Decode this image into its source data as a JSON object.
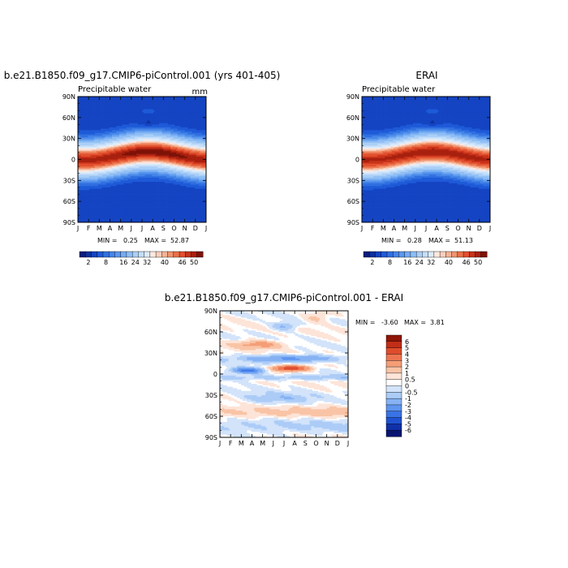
{
  "colors": {
    "seq": [
      "#0a1d7a",
      "#0b2f9c",
      "#1444c2",
      "#1e5ad8",
      "#2f6fe0",
      "#4585e8",
      "#5b98ee",
      "#74abf2",
      "#8fbef5",
      "#aacff7",
      "#c5dff9",
      "#dcebfb",
      "#fde8df",
      "#f9d0bd",
      "#f5b396",
      "#f0936e",
      "#ea7048",
      "#e24f2e",
      "#c93319",
      "#a8200f",
      "#7e1208"
    ],
    "div": [
      "#0a1570",
      "#1030a8",
      "#1f52d1",
      "#3a73e6",
      "#5e95ef",
      "#86b2f4",
      "#acccf7",
      "#d2e3fa",
      "#ffffff",
      "#fde4d8",
      "#f9c4a6",
      "#f49e77",
      "#ec7550",
      "#df4c2c",
      "#c22e18",
      "#8e1608"
    ]
  },
  "chart_data": [
    {
      "type": "heatmap",
      "id": "model",
      "title": "b.e21.B1850.f09_g17.CMIP6-piControl.001 (yrs 401-405)",
      "left_label": "Precipitable water",
      "units": "mm",
      "x_ticks": [
        "J",
        "F",
        "M",
        "A",
        "M",
        "J",
        "J",
        "A",
        "S",
        "O",
        "N",
        "D",
        "J"
      ],
      "y_ticks": [
        "90N",
        "60N",
        "30N",
        "0",
        "30S",
        "60S",
        "90S"
      ],
      "y_range": [
        -90,
        90
      ],
      "min_label": "MIN =",
      "min": "0.25",
      "max_label": "MAX =",
      "max": "52.87",
      "colorbar_labels": [
        "2",
        "8",
        "16",
        "24",
        "32",
        "40",
        "46",
        "50"
      ]
    },
    {
      "type": "heatmap",
      "id": "obs",
      "title": "ERAI",
      "left_label": "Precipitable water",
      "x_ticks": [
        "J",
        "F",
        "M",
        "A",
        "M",
        "J",
        "J",
        "A",
        "S",
        "O",
        "N",
        "D",
        "J"
      ],
      "y_ticks": [
        "90N",
        "60N",
        "30N",
        "0",
        "30S",
        "60S",
        "90S"
      ],
      "y_range": [
        -90,
        90
      ],
      "min_label": "MIN =",
      "min": "0.28",
      "max_label": "MAX =",
      "max": "51.13",
      "colorbar_labels": [
        "2",
        "8",
        "16",
        "24",
        "32",
        "40",
        "46",
        "50"
      ]
    },
    {
      "type": "heatmap",
      "id": "diff",
      "title": "b.e21.B1850.f09_g17.CMIP6-piControl.001 - ERAI",
      "x_ticks": [
        "J",
        "F",
        "M",
        "A",
        "M",
        "J",
        "J",
        "A",
        "S",
        "O",
        "N",
        "D",
        "J"
      ],
      "y_ticks": [
        "90N",
        "60N",
        "30N",
        "0",
        "30S",
        "60S",
        "90S"
      ],
      "y_range": [
        -90,
        90
      ],
      "min_label": "MIN =",
      "min": "-3.60",
      "max_label": "MAX =",
      "max": "3.81",
      "colorbar_labels": [
        "6",
        "5",
        "4",
        "3",
        "2",
        "1",
        "0.5",
        "0",
        "-0.5",
        "-1",
        "-2",
        "-3",
        "-4",
        "-5",
        "-6"
      ]
    }
  ]
}
